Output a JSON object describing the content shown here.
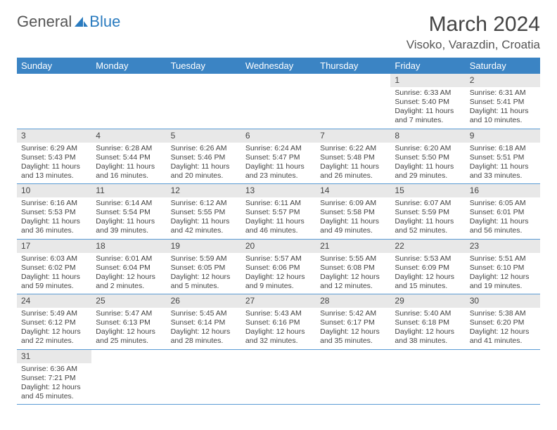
{
  "logo": {
    "text1": "General",
    "text2": "Blue"
  },
  "title": "March 2024",
  "location": "Visoko, Varazdin, Croatia",
  "colors": {
    "header_bg": "#3b84c4",
    "header_fg": "#ffffff",
    "daynum_bg": "#e8e8e8",
    "row_border": "#5a9bd4",
    "logo_blue": "#2a7bbf",
    "text": "#444444"
  },
  "weekdays": [
    "Sunday",
    "Monday",
    "Tuesday",
    "Wednesday",
    "Thursday",
    "Friday",
    "Saturday"
  ],
  "layout": {
    "first_day_col": 5,
    "days_in_month": 31
  },
  "days": {
    "1": {
      "sunrise": "6:33 AM",
      "sunset": "5:40 PM",
      "day_h": 11,
      "day_m": 7
    },
    "2": {
      "sunrise": "6:31 AM",
      "sunset": "5:41 PM",
      "day_h": 11,
      "day_m": 10
    },
    "3": {
      "sunrise": "6:29 AM",
      "sunset": "5:43 PM",
      "day_h": 11,
      "day_m": 13
    },
    "4": {
      "sunrise": "6:28 AM",
      "sunset": "5:44 PM",
      "day_h": 11,
      "day_m": 16
    },
    "5": {
      "sunrise": "6:26 AM",
      "sunset": "5:46 PM",
      "day_h": 11,
      "day_m": 20
    },
    "6": {
      "sunrise": "6:24 AM",
      "sunset": "5:47 PM",
      "day_h": 11,
      "day_m": 23
    },
    "7": {
      "sunrise": "6:22 AM",
      "sunset": "5:48 PM",
      "day_h": 11,
      "day_m": 26
    },
    "8": {
      "sunrise": "6:20 AM",
      "sunset": "5:50 PM",
      "day_h": 11,
      "day_m": 29
    },
    "9": {
      "sunrise": "6:18 AM",
      "sunset": "5:51 PM",
      "day_h": 11,
      "day_m": 33
    },
    "10": {
      "sunrise": "6:16 AM",
      "sunset": "5:53 PM",
      "day_h": 11,
      "day_m": 36
    },
    "11": {
      "sunrise": "6:14 AM",
      "sunset": "5:54 PM",
      "day_h": 11,
      "day_m": 39
    },
    "12": {
      "sunrise": "6:12 AM",
      "sunset": "5:55 PM",
      "day_h": 11,
      "day_m": 42
    },
    "13": {
      "sunrise": "6:11 AM",
      "sunset": "5:57 PM",
      "day_h": 11,
      "day_m": 46
    },
    "14": {
      "sunrise": "6:09 AM",
      "sunset": "5:58 PM",
      "day_h": 11,
      "day_m": 49
    },
    "15": {
      "sunrise": "6:07 AM",
      "sunset": "5:59 PM",
      "day_h": 11,
      "day_m": 52
    },
    "16": {
      "sunrise": "6:05 AM",
      "sunset": "6:01 PM",
      "day_h": 11,
      "day_m": 56
    },
    "17": {
      "sunrise": "6:03 AM",
      "sunset": "6:02 PM",
      "day_h": 11,
      "day_m": 59
    },
    "18": {
      "sunrise": "6:01 AM",
      "sunset": "6:04 PM",
      "day_h": 12,
      "day_m": 2
    },
    "19": {
      "sunrise": "5:59 AM",
      "sunset": "6:05 PM",
      "day_h": 12,
      "day_m": 5
    },
    "20": {
      "sunrise": "5:57 AM",
      "sunset": "6:06 PM",
      "day_h": 12,
      "day_m": 9
    },
    "21": {
      "sunrise": "5:55 AM",
      "sunset": "6:08 PM",
      "day_h": 12,
      "day_m": 12
    },
    "22": {
      "sunrise": "5:53 AM",
      "sunset": "6:09 PM",
      "day_h": 12,
      "day_m": 15
    },
    "23": {
      "sunrise": "5:51 AM",
      "sunset": "6:10 PM",
      "day_h": 12,
      "day_m": 19
    },
    "24": {
      "sunrise": "5:49 AM",
      "sunset": "6:12 PM",
      "day_h": 12,
      "day_m": 22
    },
    "25": {
      "sunrise": "5:47 AM",
      "sunset": "6:13 PM",
      "day_h": 12,
      "day_m": 25
    },
    "26": {
      "sunrise": "5:45 AM",
      "sunset": "6:14 PM",
      "day_h": 12,
      "day_m": 28
    },
    "27": {
      "sunrise": "5:43 AM",
      "sunset": "6:16 PM",
      "day_h": 12,
      "day_m": 32
    },
    "28": {
      "sunrise": "5:42 AM",
      "sunset": "6:17 PM",
      "day_h": 12,
      "day_m": 35
    },
    "29": {
      "sunrise": "5:40 AM",
      "sunset": "6:18 PM",
      "day_h": 12,
      "day_m": 38
    },
    "30": {
      "sunrise": "5:38 AM",
      "sunset": "6:20 PM",
      "day_h": 12,
      "day_m": 41
    },
    "31": {
      "sunrise": "6:36 AM",
      "sunset": "7:21 PM",
      "day_h": 12,
      "day_m": 45
    }
  },
  "labels": {
    "sunrise": "Sunrise: ",
    "sunset": "Sunset: ",
    "daylight": "Daylight: ",
    "hours": " hours",
    "and": "and ",
    "minutes": " minutes."
  }
}
